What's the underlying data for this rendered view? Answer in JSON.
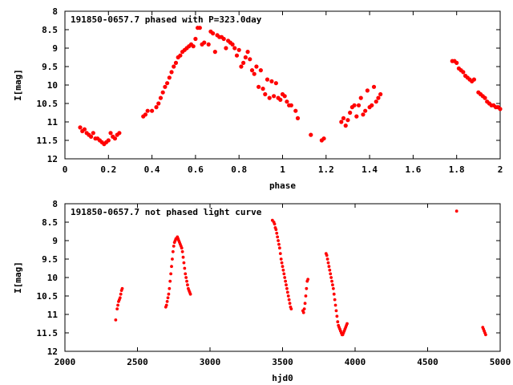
{
  "chart_data": [
    {
      "type": "scatter",
      "title": "191850-0657.7 phased with P=323.0day",
      "xlabel": "phase",
      "ylabel": "I[mag]",
      "xlim": [
        0,
        2
      ],
      "ylim": [
        8,
        12
      ],
      "y_inverted": true,
      "xticks": [
        "0",
        "0.2",
        "0.4",
        "0.6",
        "0.8",
        "1",
        "1.2",
        "1.4",
        "1.6",
        "1.8",
        "2"
      ],
      "yticks": [
        "8",
        "8.5",
        "9",
        "9.5",
        "10",
        "10.5",
        "11",
        "11.5",
        "12"
      ],
      "grid": false,
      "marker": "filled-circle",
      "marker_color": "#ff0000",
      "series": [
        {
          "points": [
            [
              0.07,
              11.15
            ],
            [
              0.08,
              11.25
            ],
            [
              0.09,
              11.2
            ],
            [
              0.1,
              11.3
            ],
            [
              0.11,
              11.35
            ],
            [
              0.12,
              11.4
            ],
            [
              0.13,
              11.3
            ],
            [
              0.14,
              11.45
            ],
            [
              0.15,
              11.45
            ],
            [
              0.16,
              11.5
            ],
            [
              0.17,
              11.55
            ],
            [
              0.18,
              11.6
            ],
            [
              0.19,
              11.55
            ],
            [
              0.2,
              11.5
            ],
            [
              0.21,
              11.3
            ],
            [
              0.22,
              11.4
            ],
            [
              0.23,
              11.45
            ],
            [
              0.24,
              11.35
            ],
            [
              0.25,
              11.3
            ],
            [
              0.36,
              10.85
            ],
            [
              0.37,
              10.8
            ],
            [
              0.38,
              10.7
            ],
            [
              0.4,
              10.7
            ],
            [
              0.42,
              10.6
            ],
            [
              0.43,
              10.5
            ],
            [
              0.44,
              10.35
            ],
            [
              0.45,
              10.2
            ],
            [
              0.46,
              10.05
            ],
            [
              0.47,
              9.95
            ],
            [
              0.48,
              9.8
            ],
            [
              0.49,
              9.65
            ],
            [
              0.5,
              9.5
            ],
            [
              0.51,
              9.4
            ],
            [
              0.52,
              9.25
            ],
            [
              0.53,
              9.2
            ],
            [
              0.54,
              9.1
            ],
            [
              0.55,
              9.05
            ],
            [
              0.56,
              9.0
            ],
            [
              0.57,
              8.95
            ],
            [
              0.58,
              8.9
            ],
            [
              0.59,
              8.95
            ],
            [
              0.6,
              8.75
            ],
            [
              0.61,
              8.45
            ],
            [
              0.62,
              8.45
            ],
            [
              0.63,
              8.9
            ],
            [
              0.64,
              8.85
            ],
            [
              0.66,
              8.9
            ],
            [
              0.67,
              8.55
            ],
            [
              0.68,
              8.6
            ],
            [
              0.69,
              9.1
            ],
            [
              0.7,
              8.65
            ],
            [
              0.71,
              8.7
            ],
            [
              0.72,
              8.7
            ],
            [
              0.73,
              8.75
            ],
            [
              0.74,
              9.0
            ],
            [
              0.75,
              8.8
            ],
            [
              0.76,
              8.85
            ],
            [
              0.77,
              8.9
            ],
            [
              0.78,
              9.0
            ],
            [
              0.79,
              9.2
            ],
            [
              0.8,
              9.05
            ],
            [
              0.81,
              9.5
            ],
            [
              0.82,
              9.4
            ],
            [
              0.83,
              9.25
            ],
            [
              0.84,
              9.1
            ],
            [
              0.85,
              9.3
            ],
            [
              0.86,
              9.6
            ],
            [
              0.87,
              9.7
            ],
            [
              0.88,
              9.5
            ],
            [
              0.89,
              10.05
            ],
            [
              0.9,
              9.6
            ],
            [
              0.91,
              10.1
            ],
            [
              0.92,
              10.25
            ],
            [
              0.93,
              9.85
            ],
            [
              0.94,
              10.35
            ],
            [
              0.95,
              9.9
            ],
            [
              0.96,
              10.3
            ],
            [
              0.97,
              9.95
            ],
            [
              0.98,
              10.35
            ],
            [
              0.99,
              10.4
            ],
            [
              1.0,
              10.25
            ],
            [
              1.01,
              10.3
            ],
            [
              1.02,
              10.45
            ],
            [
              1.03,
              10.55
            ],
            [
              1.04,
              10.55
            ],
            [
              1.06,
              10.7
            ],
            [
              1.07,
              10.9
            ],
            [
              1.13,
              11.35
            ],
            [
              1.18,
              11.5
            ],
            [
              1.19,
              11.45
            ],
            [
              1.27,
              11.0
            ],
            [
              1.28,
              10.9
            ],
            [
              1.29,
              11.1
            ],
            [
              1.3,
              10.95
            ],
            [
              1.31,
              10.75
            ],
            [
              1.32,
              10.6
            ],
            [
              1.33,
              10.55
            ],
            [
              1.34,
              10.85
            ],
            [
              1.35,
              10.55
            ],
            [
              1.36,
              10.35
            ],
            [
              1.37,
              10.8
            ],
            [
              1.38,
              10.7
            ],
            [
              1.39,
              10.15
            ],
            [
              1.4,
              10.6
            ],
            [
              1.41,
              10.55
            ],
            [
              1.42,
              10.05
            ],
            [
              1.43,
              10.45
            ],
            [
              1.44,
              10.35
            ],
            [
              1.45,
              10.25
            ],
            [
              1.78,
              9.35
            ],
            [
              1.79,
              9.35
            ],
            [
              1.8,
              9.4
            ],
            [
              1.81,
              9.55
            ],
            [
              1.82,
              9.6
            ],
            [
              1.83,
              9.65
            ],
            [
              1.84,
              9.75
            ],
            [
              1.85,
              9.8
            ],
            [
              1.86,
              9.85
            ],
            [
              1.87,
              9.9
            ],
            [
              1.88,
              9.85
            ],
            [
              1.9,
              10.2
            ],
            [
              1.91,
              10.25
            ],
            [
              1.92,
              10.3
            ],
            [
              1.93,
              10.35
            ],
            [
              1.94,
              10.45
            ],
            [
              1.95,
              10.5
            ],
            [
              1.96,
              10.55
            ],
            [
              1.97,
              10.55
            ],
            [
              1.98,
              10.6
            ],
            [
              1.99,
              10.6
            ],
            [
              2.0,
              10.65
            ]
          ]
        }
      ]
    },
    {
      "type": "scatter",
      "title": "191850-0657.7 not phased light curve",
      "xlabel": "hjd0",
      "ylabel": "I[mag]",
      "xlim": [
        2000,
        5000
      ],
      "ylim": [
        8,
        12
      ],
      "y_inverted": true,
      "xticks": [
        "2000",
        "2500",
        "3000",
        "3500",
        "4000",
        "4500",
        "5000"
      ],
      "yticks": [
        "8",
        "8.5",
        "9",
        "9.5",
        "10",
        "10.5",
        "11",
        "11.5",
        "12"
      ],
      "grid": false,
      "marker": "filled-circle",
      "marker_color": "#ff0000",
      "series": [
        {
          "points": [
            [
              2350,
              11.15
            ],
            [
              2360,
              10.85
            ],
            [
              2365,
              10.75
            ],
            [
              2370,
              10.65
            ],
            [
              2375,
              10.6
            ],
            [
              2380,
              10.55
            ],
            [
              2385,
              10.45
            ],
            [
              2390,
              10.35
            ],
            [
              2395,
              10.3
            ],
            [
              2695,
              10.8
            ],
            [
              2700,
              10.75
            ],
            [
              2705,
              10.65
            ],
            [
              2710,
              10.55
            ],
            [
              2715,
              10.45
            ],
            [
              2720,
              10.3
            ],
            [
              2725,
              10.1
            ],
            [
              2730,
              9.9
            ],
            [
              2735,
              9.7
            ],
            [
              2740,
              9.5
            ],
            [
              2745,
              9.3
            ],
            [
              2750,
              9.15
            ],
            [
              2755,
              9.05
            ],
            [
              2760,
              9.0
            ],
            [
              2765,
              8.95
            ],
            [
              2770,
              8.95
            ],
            [
              2775,
              8.9
            ],
            [
              2780,
              8.95
            ],
            [
              2785,
              9.0
            ],
            [
              2790,
              9.05
            ],
            [
              2795,
              9.1
            ],
            [
              2800,
              9.15
            ],
            [
              2805,
              9.2
            ],
            [
              2810,
              9.3
            ],
            [
              2815,
              9.45
            ],
            [
              2820,
              9.6
            ],
            [
              2825,
              9.75
            ],
            [
              2830,
              9.9
            ],
            [
              2835,
              10.0
            ],
            [
              2840,
              10.1
            ],
            [
              2845,
              10.2
            ],
            [
              2850,
              10.3
            ],
            [
              2855,
              10.35
            ],
            [
              2860,
              10.4
            ],
            [
              2865,
              10.45
            ],
            [
              3430,
              8.45
            ],
            [
              3440,
              8.5
            ],
            [
              3445,
              8.55
            ],
            [
              3450,
              8.65
            ],
            [
              3455,
              8.7
            ],
            [
              3460,
              8.8
            ],
            [
              3465,
              8.9
            ],
            [
              3470,
              9.0
            ],
            [
              3475,
              9.1
            ],
            [
              3480,
              9.2
            ],
            [
              3485,
              9.35
            ],
            [
              3490,
              9.5
            ],
            [
              3495,
              9.6
            ],
            [
              3500,
              9.7
            ],
            [
              3505,
              9.8
            ],
            [
              3510,
              9.9
            ],
            [
              3515,
              10.0
            ],
            [
              3520,
              10.1
            ],
            [
              3525,
              10.2
            ],
            [
              3530,
              10.3
            ],
            [
              3535,
              10.4
            ],
            [
              3540,
              10.5
            ],
            [
              3545,
              10.6
            ],
            [
              3550,
              10.7
            ],
            [
              3555,
              10.8
            ],
            [
              3560,
              10.85
            ],
            [
              3640,
              10.9
            ],
            [
              3645,
              10.95
            ],
            [
              3650,
              10.85
            ],
            [
              3655,
              10.7
            ],
            [
              3660,
              10.5
            ],
            [
              3665,
              10.3
            ],
            [
              3670,
              10.1
            ],
            [
              3675,
              10.05
            ],
            [
              3800,
              9.35
            ],
            [
              3805,
              9.4
            ],
            [
              3810,
              9.5
            ],
            [
              3815,
              9.6
            ],
            [
              3820,
              9.7
            ],
            [
              3825,
              9.8
            ],
            [
              3830,
              9.9
            ],
            [
              3835,
              10.0
            ],
            [
              3840,
              10.1
            ],
            [
              3845,
              10.2
            ],
            [
              3850,
              10.3
            ],
            [
              3855,
              10.45
            ],
            [
              3860,
              10.6
            ],
            [
              3865,
              10.75
            ],
            [
              3870,
              10.9
            ],
            [
              3875,
              11.05
            ],
            [
              3880,
              11.2
            ],
            [
              3885,
              11.3
            ],
            [
              3890,
              11.35
            ],
            [
              3895,
              11.4
            ],
            [
              3900,
              11.45
            ],
            [
              3905,
              11.5
            ],
            [
              3910,
              11.55
            ],
            [
              3915,
              11.55
            ],
            [
              3920,
              11.5
            ],
            [
              3925,
              11.45
            ],
            [
              3930,
              11.4
            ],
            [
              3935,
              11.35
            ],
            [
              3940,
              11.3
            ],
            [
              3945,
              11.25
            ],
            [
              4700,
              8.2
            ],
            [
              4880,
              11.35
            ],
            [
              4885,
              11.4
            ],
            [
              4890,
              11.45
            ],
            [
              4895,
              11.5
            ],
            [
              4900,
              11.55
            ]
          ]
        }
      ]
    }
  ]
}
